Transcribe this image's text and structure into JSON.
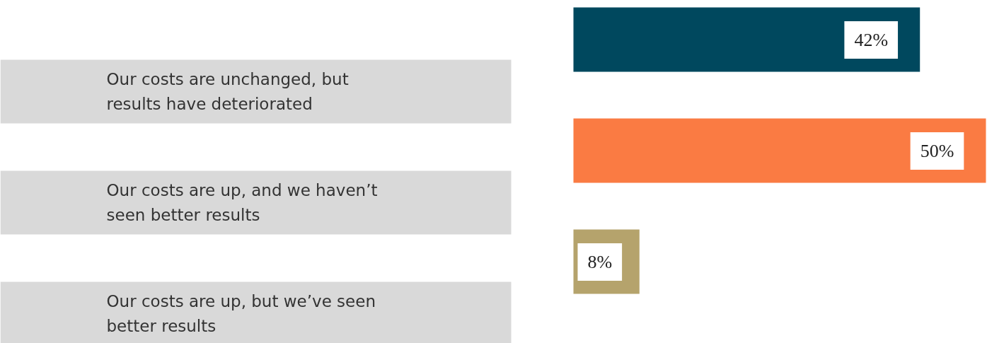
{
  "chart_data": {
    "type": "bar",
    "orientation": "horizontal",
    "categories": [
      "Our costs are unchanged, but results have deteriorated",
      "Our costs are up, and we haven’t seen better results",
      "Our costs are up, but we’ve seen better results"
    ],
    "values": [
      42,
      50,
      8
    ],
    "colors": [
      "#00485e",
      "#fa7b43",
      "#b5a36c"
    ],
    "value_labels": [
      "42%",
      "50%",
      "8%"
    ]
  }
}
